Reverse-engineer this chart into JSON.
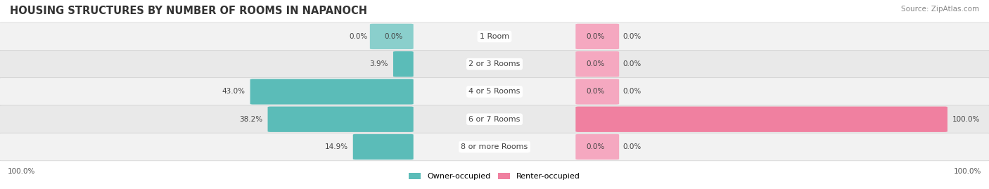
{
  "title": "HOUSING STRUCTURES BY NUMBER OF ROOMS IN NAPANOCH",
  "source": "Source: ZipAtlas.com",
  "categories": [
    "1 Room",
    "2 or 3 Rooms",
    "4 or 5 Rooms",
    "6 or 7 Rooms",
    "8 or more Rooms"
  ],
  "owner_values": [
    0.0,
    3.9,
    43.0,
    38.2,
    14.9
  ],
  "renter_values": [
    0.0,
    0.0,
    0.0,
    100.0,
    0.0
  ],
  "owner_color": "#5bbcb8",
  "renter_color": "#f080a0",
  "label_color": "#555555",
  "title_color": "#333333",
  "max_value": 100.0,
  "figsize": [
    14.06,
    2.69
  ],
  "dpi": 100
}
